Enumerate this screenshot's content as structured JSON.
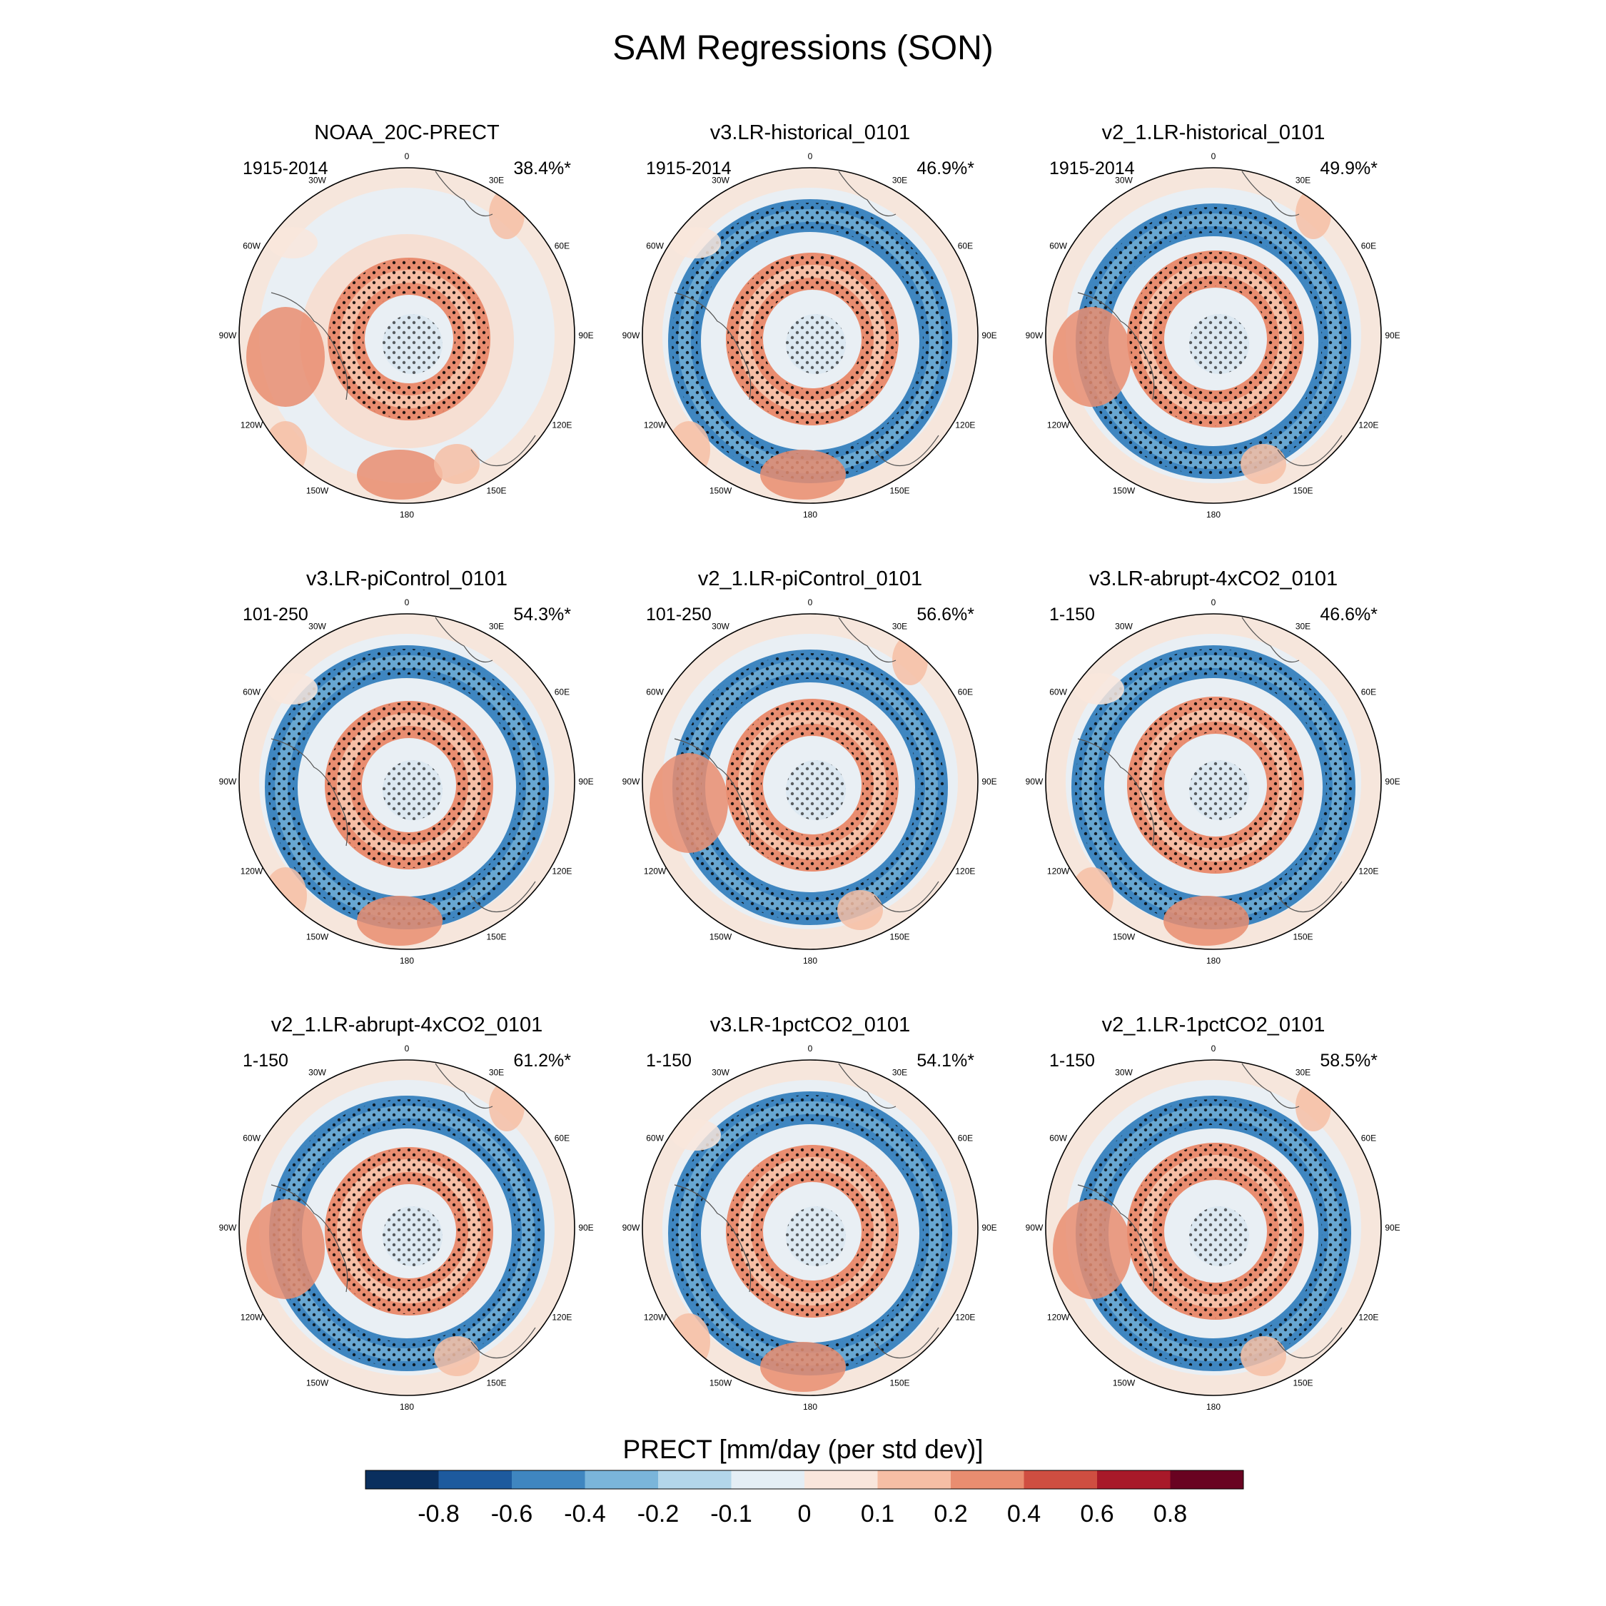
{
  "title": "SAM Regressions (SON)",
  "longitude_labels": [
    "0",
    "30E",
    "60E",
    "90E",
    "120E",
    "150E",
    "180",
    "150W",
    "120W",
    "90W",
    "60W",
    "30W"
  ],
  "panels": [
    {
      "title": "NOAA_20C-PRECT",
      "period": "1915-2014",
      "percent": "38.4%*"
    },
    {
      "title": "v3.LR-historical_0101",
      "period": "1915-2014",
      "percent": "46.9%*"
    },
    {
      "title": "v2_1.LR-historical_0101",
      "period": "1915-2014",
      "percent": "49.9%*"
    },
    {
      "title": "v3.LR-piControl_0101",
      "period": "101-250",
      "percent": "54.3%*"
    },
    {
      "title": "v2_1.LR-piControl_0101",
      "period": "101-250",
      "percent": "56.6%*"
    },
    {
      "title": "v3.LR-abrupt-4xCO2_0101",
      "period": "1-150",
      "percent": "46.6%*"
    },
    {
      "title": "v2_1.LR-abrupt-4xCO2_0101",
      "period": "1-150",
      "percent": "61.2%*"
    },
    {
      "title": "v3.LR-1pctCO2_0101",
      "period": "1-150",
      "percent": "54.1%*"
    },
    {
      "title": "v2_1.LR-1pctCO2_0101",
      "period": "1-150",
      "percent": "58.5%*"
    }
  ],
  "colorbar": {
    "title": "PRECT [mm/day (per std dev)]",
    "labels": [
      "-0.8",
      "-0.6",
      "-0.4",
      "-0.2",
      "-0.1",
      "0",
      "0.1",
      "0.2",
      "0.4",
      "0.6",
      "0.8"
    ],
    "colors": [
      "#0a2f5e",
      "#1d5a9e",
      "#3f86c0",
      "#7ab5da",
      "#b3d6ea",
      "#e4eef5",
      "#f9e6dc",
      "#f6bea5",
      "#e98d70",
      "#cf4e41",
      "#a81929",
      "#690321"
    ]
  }
}
